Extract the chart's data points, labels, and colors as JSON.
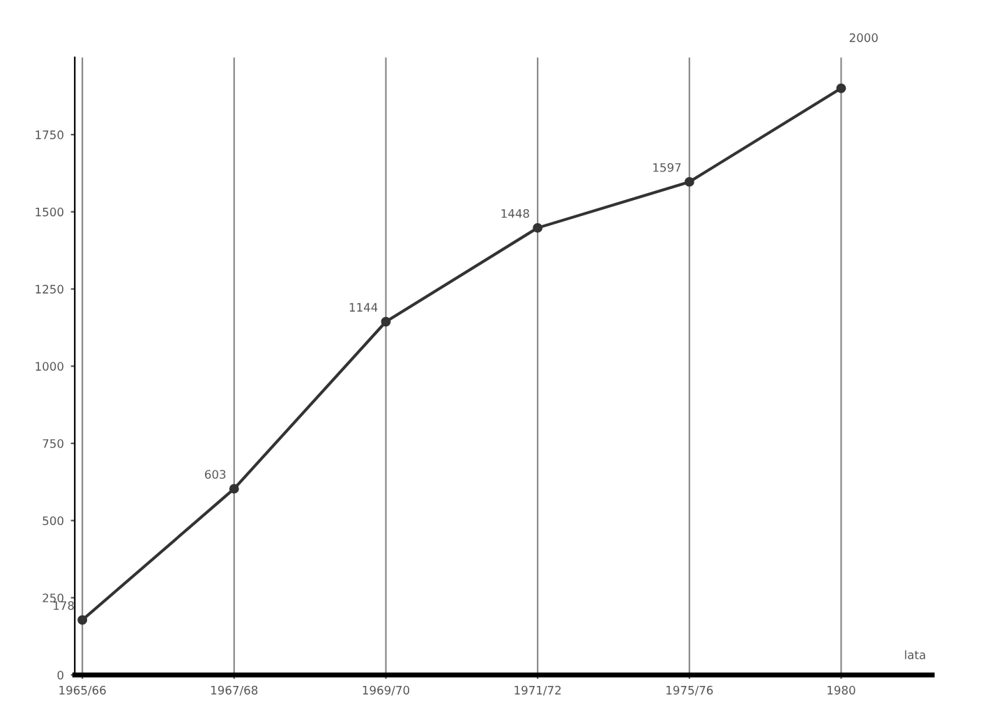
{
  "chart_data": {
    "type": "line",
    "xlabel": "lata",
    "categories": [
      "1965/66",
      "1967/68",
      "1969/70",
      "1971/72",
      "1975/76",
      "1980"
    ],
    "series": [
      {
        "color": "#333333",
        "values": [
          178,
          603,
          1144,
          1448,
          1597,
          1900
        ],
        "value_labels": [
          "178",
          "603",
          "1144",
          "1448",
          "1597",
          null
        ]
      }
    ],
    "ylim": [
      0,
      2000
    ],
    "yticks": [
      0,
      250,
      500,
      750,
      1000,
      1250,
      1500,
      1750
    ],
    "grid": "x",
    "marker": "circle",
    "line_style": "solid",
    "legend": false,
    "annotations": [
      "2000"
    ]
  }
}
